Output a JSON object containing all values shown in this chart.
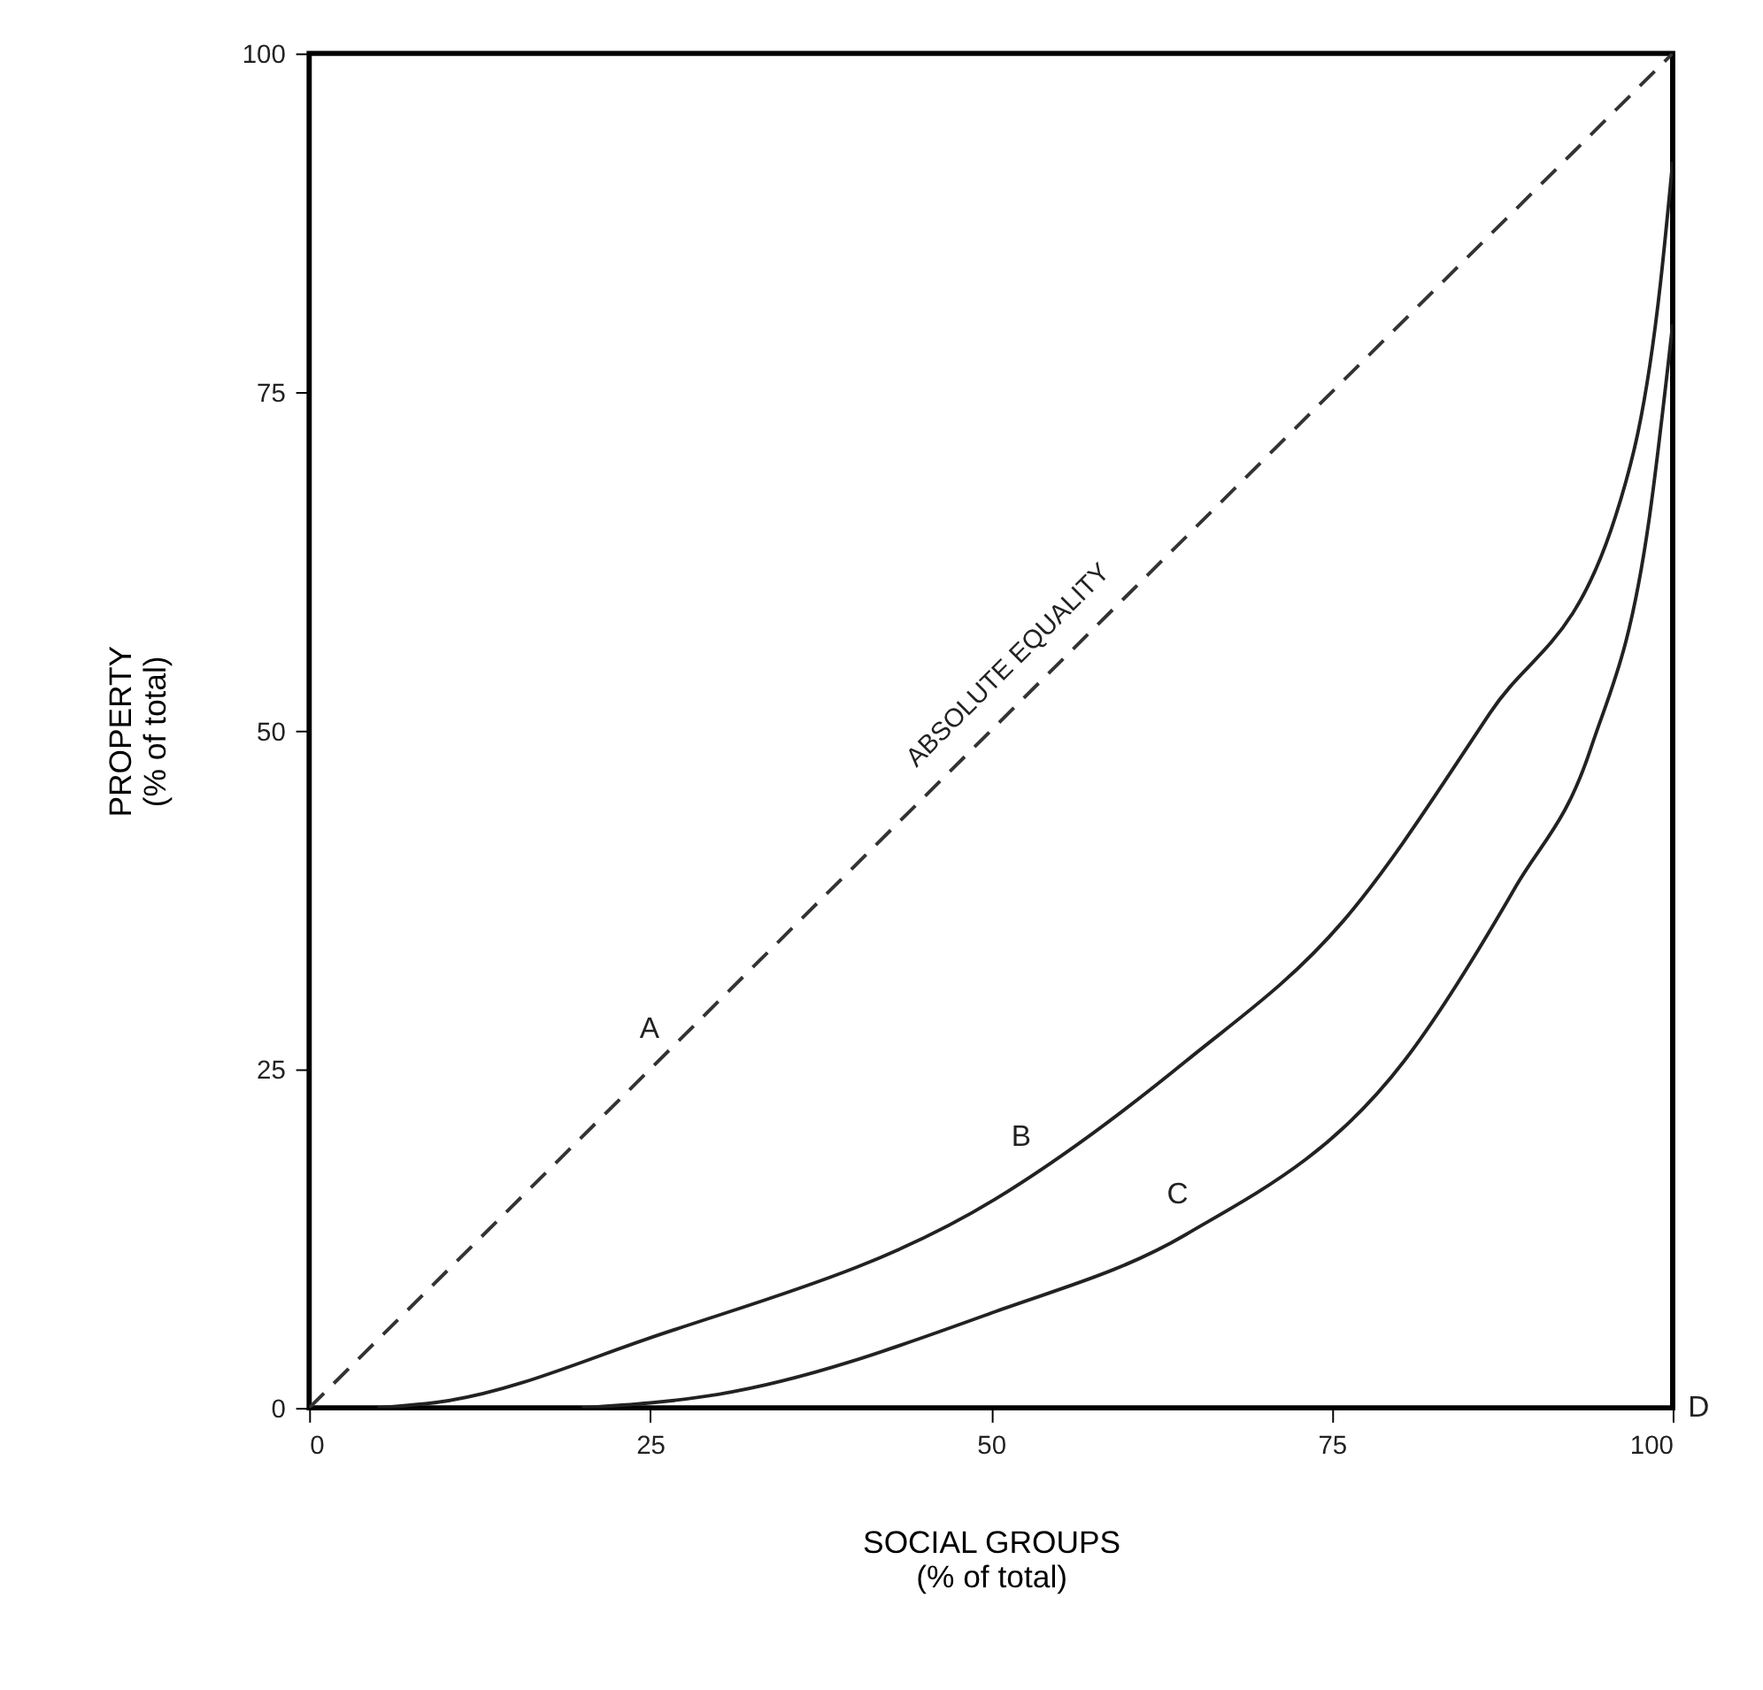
{
  "chart_data": {
    "type": "line",
    "xlabel": "SOCIAL GROUPS\n(% of total)",
    "ylabel": "PROPERTY\n(% of total)",
    "xlim": [
      0,
      100
    ],
    "ylim": [
      0,
      100
    ],
    "xticks": [
      0,
      25,
      50,
      75,
      100
    ],
    "yticks": [
      0,
      25,
      50,
      75,
      100
    ],
    "grid": false,
    "marker": "none",
    "series": [
      {
        "color": "#333333",
        "line_style": "dashed",
        "x": [
          0,
          100
        ],
        "values": [
          0,
          100
        ]
      },
      {
        "color": "#222222",
        "line_style": "solid",
        "x": [
          5,
          10,
          24.8,
          50.3,
          64.3,
          75.8,
          86.6,
          95.8,
          99.1,
          100
        ],
        "values": [
          0,
          0.5,
          5.1,
          15.4,
          25.6,
          35.9,
          51.3,
          65.8,
          83,
          92
        ]
      },
      {
        "color": "#222222",
        "line_style": "solid",
        "x": [
          20,
          30,
          50.3,
          64.3,
          80.3,
          88.5,
          94,
          98.3,
          100
        ],
        "values": [
          0,
          1,
          7.1,
          12.8,
          25.6,
          38.5,
          48.7,
          65.8,
          80
        ]
      }
    ],
    "annotations": [
      "ABSOLUTE EQUALITY",
      "A",
      "B",
      "C",
      "D"
    ]
  }
}
